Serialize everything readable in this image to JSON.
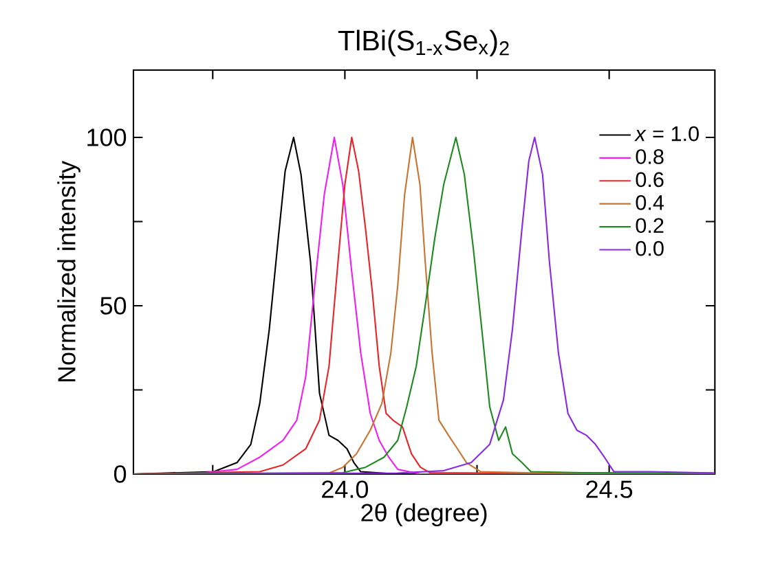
{
  "chart_data": {
    "type": "line",
    "title": "TlBi(S$_{1-x}$Se$_{x}$)$_{2}$",
    "xlabel": "2θ (degree)",
    "ylabel": "Normalized intensity",
    "xlim": [
      23.6,
      24.7
    ],
    "ylim": [
      0,
      120
    ],
    "xticks": [
      {
        "value": 23.75,
        "label": null
      },
      {
        "value": 24.0,
        "label": "24.0"
      },
      {
        "value": 24.25,
        "label": null
      },
      {
        "value": 24.5,
        "label": "24.5"
      }
    ],
    "yticks": [
      0,
      {
        "value": 25,
        "label": null
      },
      50,
      {
        "value": 75,
        "label": null
      },
      100
    ],
    "legend": "right",
    "series": [
      {
        "name": "*x* = 1.0",
        "color": "#000000",
        "x": [
          23.6,
          23.752,
          23.796,
          23.822,
          23.839,
          23.857,
          23.874,
          23.887,
          23.903,
          23.917,
          23.935,
          23.952,
          23.97,
          23.987,
          24.004,
          24.017,
          24.03,
          24.1,
          24.7
        ],
        "values": [
          0,
          0.7,
          3.4,
          8.8,
          21,
          43,
          70,
          90,
          100,
          89,
          63,
          24,
          11.5,
          10,
          7.5,
          3.4,
          0.7,
          0,
          0
        ]
      },
      {
        "name": "0.8",
        "color": "#f020f0",
        "x": [
          23.6,
          23.709,
          23.796,
          23.839,
          23.883,
          23.909,
          23.926,
          23.943,
          23.961,
          23.98,
          23.996,
          24.013,
          24.03,
          24.048,
          24.065,
          24.083,
          24.1,
          24.143,
          24.274,
          24.7
        ],
        "values": [
          0,
          0,
          1.4,
          5,
          10,
          16,
          29,
          56,
          83,
          100,
          86,
          60,
          36,
          18,
          10,
          5,
          1.4,
          0,
          0,
          0
        ]
      },
      {
        "name": "0.6",
        "color": "#e8262a",
        "x": [
          23.6,
          23.839,
          23.883,
          23.926,
          23.952,
          23.97,
          23.987,
          24.0,
          24.013,
          24.026,
          24.039,
          24.052,
          24.065,
          24.078,
          24.091,
          24.109,
          24.126,
          24.143,
          24.161,
          24.274,
          24.7
        ],
        "values": [
          0,
          0.7,
          2.7,
          7.5,
          16,
          32,
          63,
          86,
          100,
          90,
          73,
          54,
          32,
          18,
          16,
          14,
          6,
          2,
          0.4,
          0.3,
          0
        ]
      },
      {
        "name": "0.4",
        "color": "#c87533",
        "x": [
          23.6,
          23.97,
          23.996,
          24.022,
          24.048,
          24.07,
          24.087,
          24.1,
          24.113,
          24.128,
          24.142,
          24.152,
          24.165,
          24.178,
          24.196,
          24.213,
          24.23,
          24.257,
          24.361,
          24.7
        ],
        "values": [
          0,
          0.3,
          2,
          6,
          13,
          21,
          36,
          56,
          83,
          100,
          86,
          63,
          36,
          16,
          11.5,
          7.5,
          3.4,
          0.7,
          0.3,
          0
        ]
      },
      {
        "name": "0.2",
        "color": "#1f8a1f",
        "x": [
          23.6,
          23.996,
          24.039,
          24.074,
          24.1,
          24.117,
          24.135,
          24.152,
          24.17,
          24.187,
          24.21,
          24.226,
          24.243,
          24.261,
          24.274,
          24.291,
          24.304,
          24.317,
          24.335,
          24.352,
          24.448,
          24.7
        ],
        "values": [
          0,
          0.4,
          2,
          5,
          10,
          20,
          32,
          50,
          70,
          86,
          100,
          89,
          67,
          40,
          20,
          10,
          14,
          6,
          3.4,
          0.7,
          0.4,
          0.3
        ]
      },
      {
        "name": "0.0",
        "color": "#8a2be2",
        "x": [
          23.6,
          24.1,
          24.187,
          24.239,
          24.274,
          24.3,
          24.317,
          24.335,
          24.348,
          24.359,
          24.374,
          24.387,
          24.404,
          24.422,
          24.439,
          24.457,
          24.474,
          24.491,
          24.509,
          24.578,
          24.7
        ],
        "values": [
          0,
          0.3,
          1,
          3.4,
          8.8,
          22,
          43,
          73,
          93,
          100,
          89,
          63,
          36,
          18,
          13,
          11.5,
          8.8,
          5,
          0.7,
          0.7,
          0.3
        ]
      }
    ]
  }
}
